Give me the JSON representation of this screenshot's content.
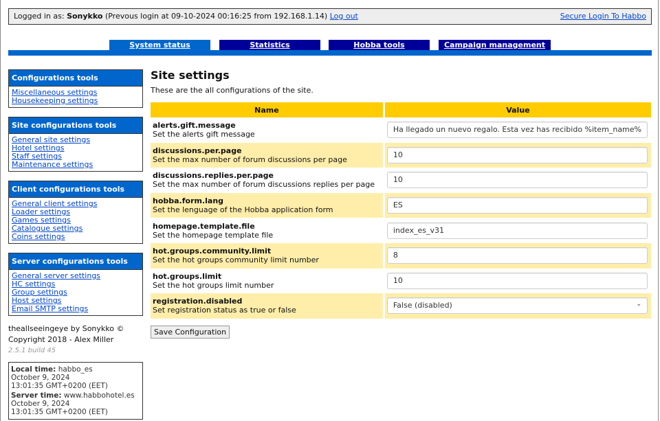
{
  "topbar": {
    "prefix": "Logged in as: ",
    "user": "Sonykko",
    "info": " (Prevous login at 09-10-2024 00:16:25 from 192.168.1.14) ",
    "logout": "Log out",
    "secure": "Secure Login To Habbo"
  },
  "tabs": [
    {
      "label": "System status",
      "active": true
    },
    {
      "label": "Statistics"
    },
    {
      "label": "Hobba tools"
    },
    {
      "label": "Campaign management"
    }
  ],
  "sidebar": {
    "groups": [
      {
        "title": "Configurations tools",
        "items": [
          "Miscellaneous settings",
          "Housekeeping settings"
        ]
      },
      {
        "title": "Site configurations tools",
        "items": [
          "General site settings",
          "Hotel settings",
          "Staff settings",
          "Maintenance settings"
        ]
      },
      {
        "title": "Client configurations tools",
        "items": [
          "General client settings",
          "Loader settings",
          "Games settings",
          "Catalogue settings",
          "Coins settings"
        ]
      },
      {
        "title": "Server configurations tools",
        "items": [
          "General server settings",
          "HC settings",
          "Group settings",
          "Host settings",
          "Email SMTP settings"
        ]
      }
    ],
    "credits1": "theallseeingeye by Sonykko ©",
    "credits2": "Copyright 2018 - Alex Miller",
    "version": "2.5.1 build 45",
    "time": {
      "local_label": "Local time:",
      "local_host": " habbo_es",
      "local_date": "October 9, 2024",
      "local_time": "13:01:35 GMT+0200 (EET)",
      "server_label": "Server time:",
      "server_host": " www.habbohotel.es",
      "server_date": "October 9, 2024",
      "server_time": "13:01:35 GMT+0200 (EET)"
    }
  },
  "main": {
    "title": "Site settings",
    "subtitle": "These are the all configurations of the site.",
    "col_name": "Name",
    "col_value": "Value",
    "save": "Save Configuration",
    "rows": [
      {
        "key": "alerts.gift.message",
        "desc": "Set the alerts gift message",
        "value": "Ha llegado un nuevo regalo. Esta vez has recibido %item_name%"
      },
      {
        "key": "discussions.per.page",
        "desc": "Set the max number of forum discussions per page",
        "value": "10"
      },
      {
        "key": "discussions.replies.per.page",
        "desc": "Set the max number of forum discussions replies per page",
        "value": "10"
      },
      {
        "key": "hobba.form.lang",
        "desc": "Set the lenguage of the Hobba application form",
        "value": "ES"
      },
      {
        "key": "homepage.template.file",
        "desc": "Set the homepage template file",
        "value": "index_es_v31"
      },
      {
        "key": "hot.groups.community.limit",
        "desc": "Set the hot groups community limit number",
        "value": "8"
      },
      {
        "key": "hot.groups.limit",
        "desc": "Set the hot groups limit number",
        "value": "10"
      },
      {
        "key": "registration.disabled",
        "desc": "Set registration status as true or false",
        "value": "False (disabled)",
        "type": "select"
      }
    ]
  }
}
